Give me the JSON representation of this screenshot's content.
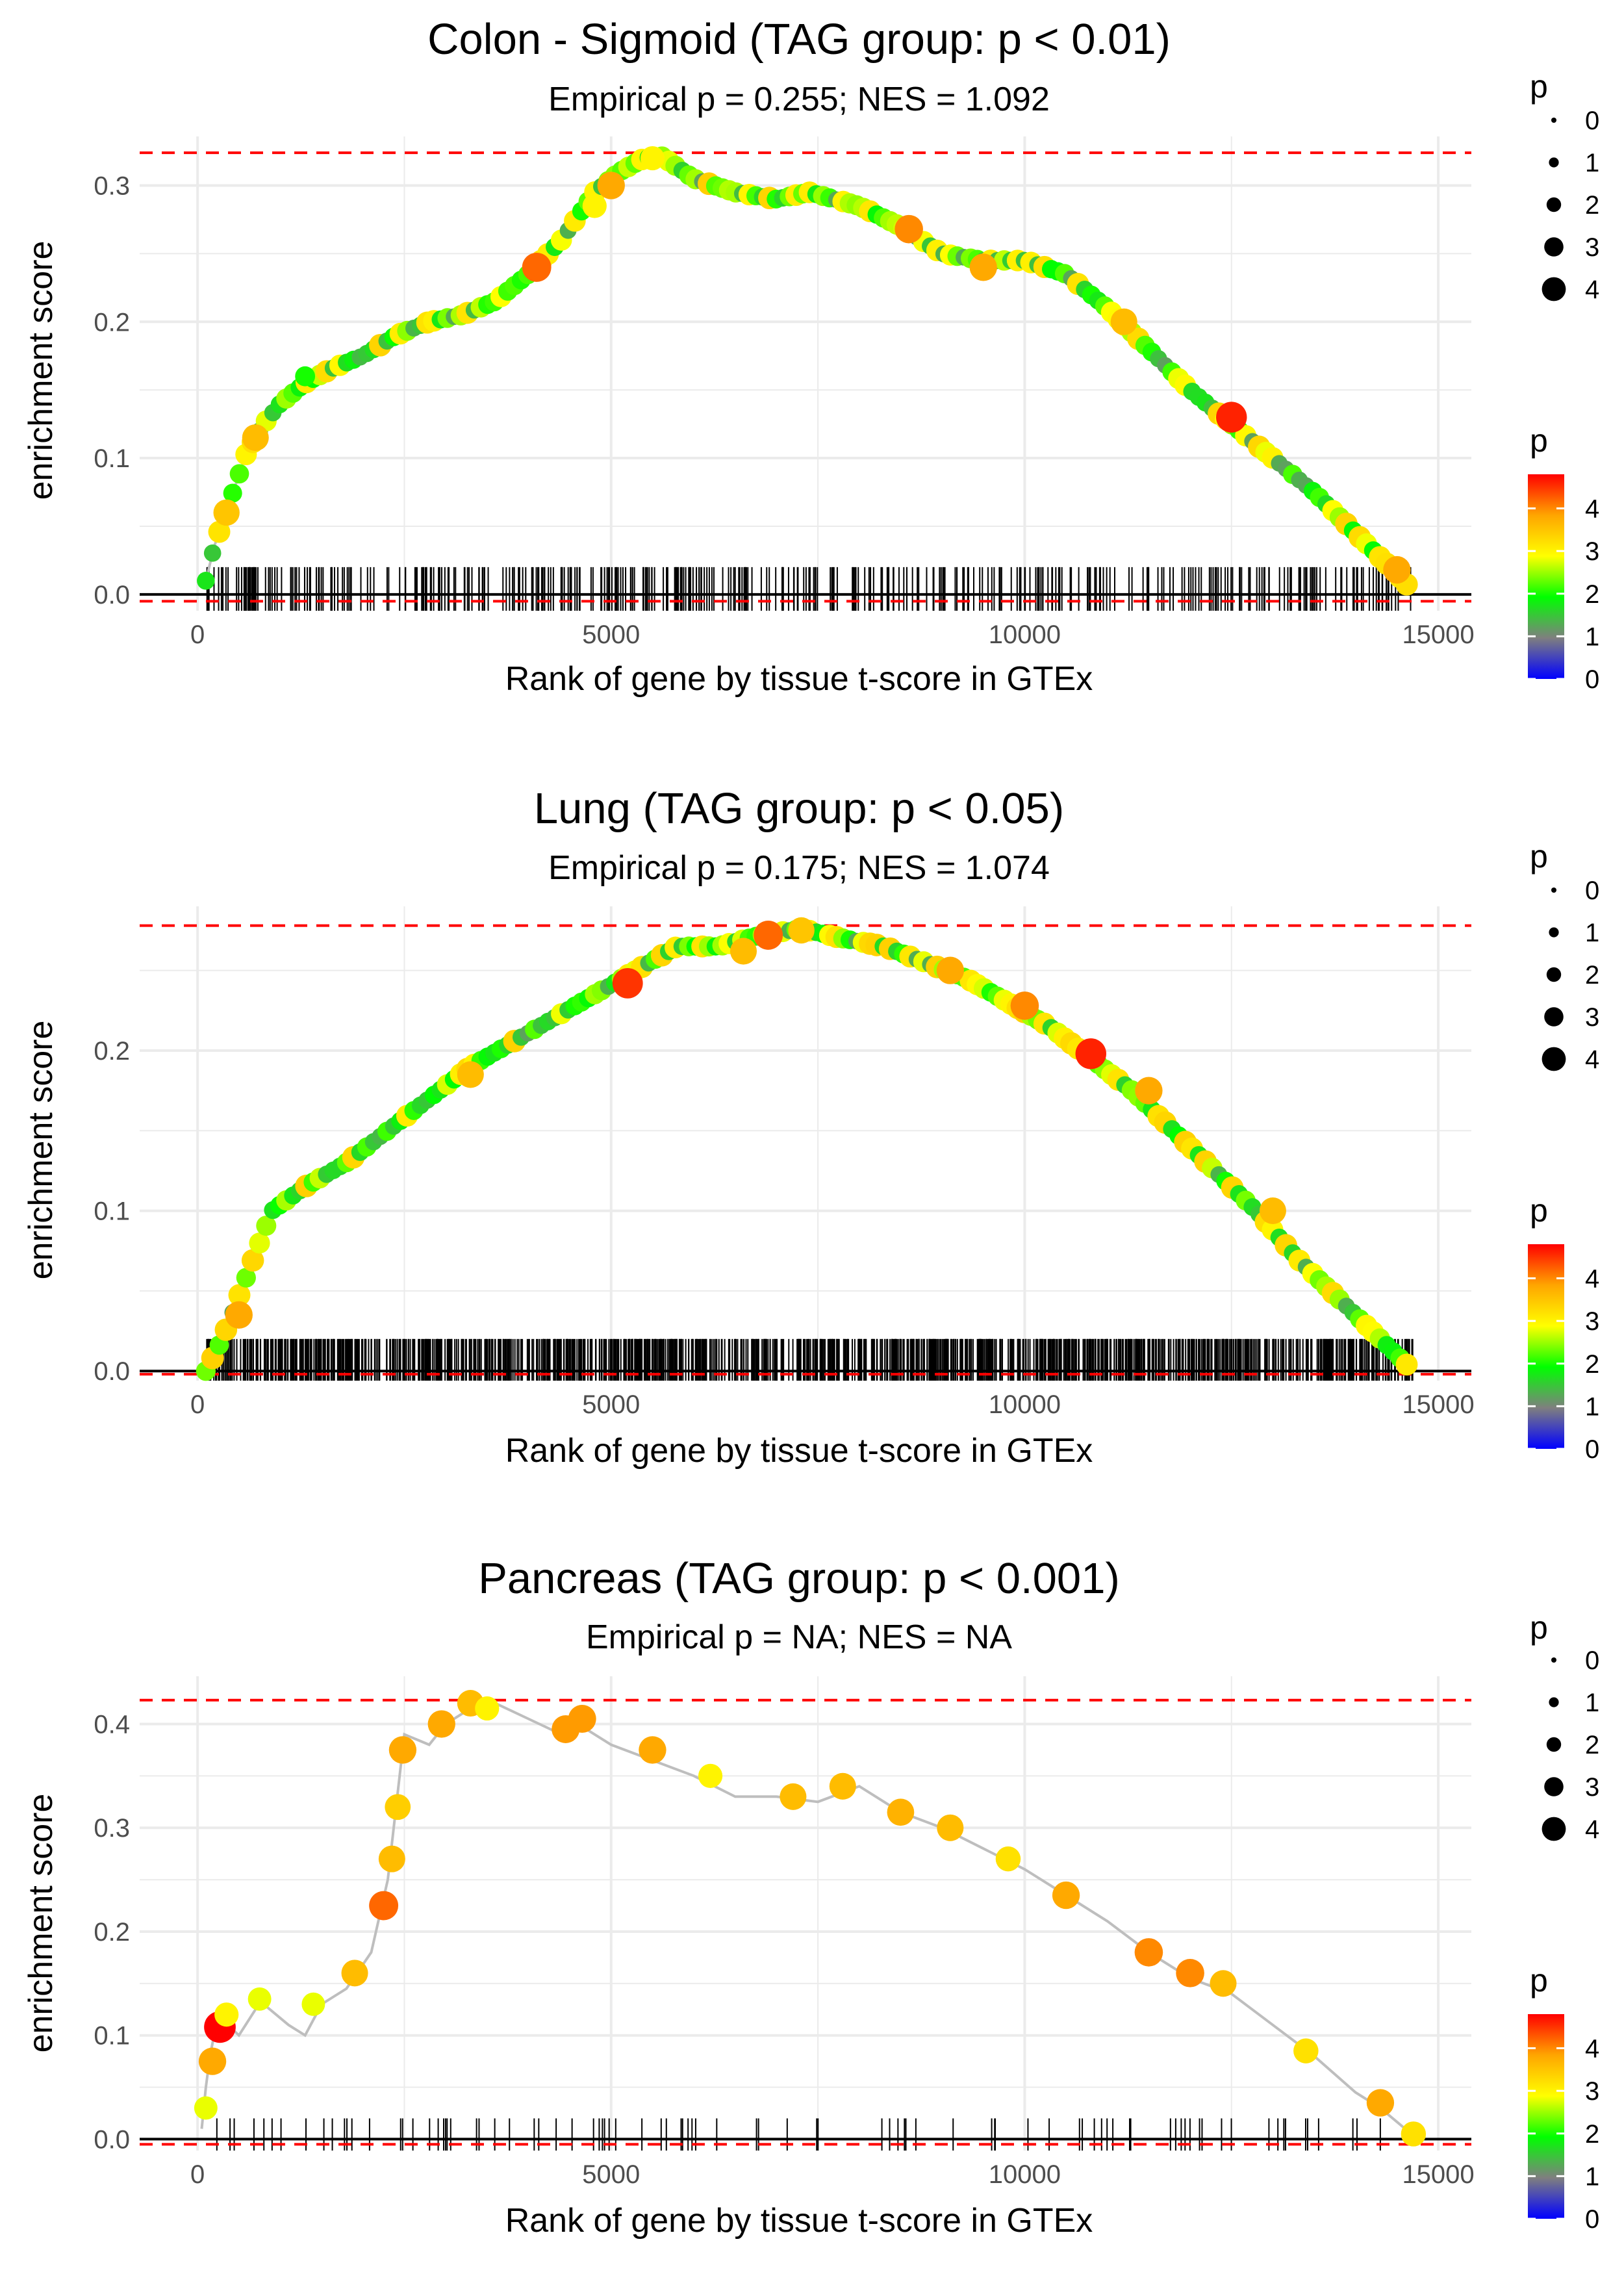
{
  "figure": {
    "xlabel": "Rank of gene by tissue t-score in GTEx",
    "ylabel": "enrichment score",
    "legend": {
      "size_title": "p",
      "size_levels": [
        "0",
        "1",
        "2",
        "3",
        "4"
      ],
      "color_title": "p",
      "color_levels": [
        "4",
        "3",
        "2",
        "1",
        "0"
      ],
      "color_stops": [
        "#0000ff",
        "#7f7f7f",
        "#00ff00",
        "#ffff00",
        "#ffa500",
        "#ff0000"
      ]
    },
    "colors": {
      "curve": "#bebebe",
      "dashed": "#ff0000",
      "baseline": "#000000",
      "grid": "#ebebeb"
    }
  },
  "chart_data": [
    {
      "type": "line",
      "title": "Colon - Sigmoid (TAG group: p < 0.01)",
      "subtitle": "Empirical p = 0.255; NES = 1.092",
      "xlabel": "Rank of gene by tissue t-score in GTEx",
      "ylabel": "enrichment score",
      "xlim": [
        -700,
        15400
      ],
      "ylim": [
        -0.012,
        0.336
      ],
      "x_ticks": [
        0,
        5000,
        10000,
        15000
      ],
      "x_tick_labels": [
        "0",
        "5000",
        "10000",
        "15000"
      ],
      "y_ticks": [
        0.0,
        0.1,
        0.2,
        0.3
      ],
      "y_tick_labels": [
        "0.0",
        "0.1",
        "0.2",
        "0.3"
      ],
      "max_es": 0.324,
      "min_es": -0.005,
      "curve_x": [
        100,
        200,
        400,
        600,
        800,
        1000,
        1300,
        1600,
        2000,
        2400,
        2800,
        3200,
        3600,
        4000,
        4400,
        4800,
        5100,
        5400,
        5600,
        6000,
        6500,
        7000,
        7400,
        8000,
        8500,
        9000,
        9500,
        10000,
        10500,
        11000,
        11500,
        12000,
        12500,
        13000,
        13500,
        14000,
        14500,
        14700
      ],
      "curve_y": [
        0.01,
        0.035,
        0.07,
        0.105,
        0.125,
        0.14,
        0.155,
        0.165,
        0.175,
        0.19,
        0.2,
        0.205,
        0.215,
        0.235,
        0.26,
        0.295,
        0.31,
        0.32,
        0.322,
        0.305,
        0.295,
        0.29,
        0.295,
        0.285,
        0.27,
        0.25,
        0.245,
        0.245,
        0.235,
        0.21,
        0.18,
        0.15,
        0.125,
        0.1,
        0.075,
        0.045,
        0.015,
        0.002
      ],
      "hit_count": 420,
      "hits": [
        {
          "x": 350,
          "es": 0.06,
          "p": 3.5
        },
        {
          "x": 700,
          "es": 0.115,
          "p": 3.6
        },
        {
          "x": 1300,
          "es": 0.16,
          "p": 2.0
        },
        {
          "x": 4100,
          "es": 0.24,
          "p": 4.2
        },
        {
          "x": 4800,
          "es": 0.285,
          "p": 3.0
        },
        {
          "x": 5000,
          "es": 0.3,
          "p": 3.8
        },
        {
          "x": 5500,
          "es": 0.32,
          "p": 3.0
        },
        {
          "x": 8600,
          "es": 0.268,
          "p": 4.0
        },
        {
          "x": 9500,
          "es": 0.24,
          "p": 3.8
        },
        {
          "x": 11200,
          "es": 0.2,
          "p": 3.6
        },
        {
          "x": 12500,
          "es": 0.13,
          "p": 4.6
        },
        {
          "x": 14500,
          "es": 0.018,
          "p": 3.8
        }
      ]
    },
    {
      "type": "line",
      "title": "Lung (TAG group: p < 0.05)",
      "subtitle": "Empirical p = 0.175; NES = 1.074",
      "xlabel": "Rank of gene by tissue t-score in GTEx",
      "ylabel": "enrichment score",
      "xlim": [
        -700,
        15400
      ],
      "ylim": [
        -0.006,
        0.29
      ],
      "x_ticks": [
        0,
        5000,
        10000,
        15000
      ],
      "x_tick_labels": [
        "0",
        "5000",
        "10000",
        "15000"
      ],
      "y_ticks": [
        0.0,
        0.1,
        0.2
      ],
      "y_tick_labels": [
        "0.0",
        "0.1",
        "0.2"
      ],
      "max_es": 0.278,
      "min_es": -0.002,
      "curve_x": [
        100,
        300,
        600,
        900,
        1300,
        1800,
        2300,
        2800,
        3300,
        3800,
        4300,
        4800,
        5300,
        5800,
        6300,
        6800,
        7300,
        7800,
        8300,
        8800,
        9300,
        9800,
        10300,
        10800,
        11300,
        11800,
        12300,
        12800,
        13300,
        13800,
        14300,
        14700
      ],
      "curve_y": [
        0.0,
        0.02,
        0.06,
        0.1,
        0.115,
        0.13,
        0.15,
        0.17,
        0.19,
        0.205,
        0.22,
        0.235,
        0.25,
        0.265,
        0.265,
        0.272,
        0.276,
        0.27,
        0.265,
        0.255,
        0.245,
        0.23,
        0.215,
        0.195,
        0.175,
        0.15,
        0.125,
        0.1,
        0.07,
        0.045,
        0.02,
        0.0
      ],
      "hit_count": 1200,
      "hits": [
        {
          "x": 500,
          "es": 0.035,
          "p": 3.8
        },
        {
          "x": 3300,
          "es": 0.185,
          "p": 3.6
        },
        {
          "x": 5200,
          "es": 0.242,
          "p": 4.5
        },
        {
          "x": 6600,
          "es": 0.262,
          "p": 3.6
        },
        {
          "x": 6900,
          "es": 0.272,
          "p": 4.2
        },
        {
          "x": 7300,
          "es": 0.275,
          "p": 3.5
        },
        {
          "x": 9100,
          "es": 0.25,
          "p": 3.8
        },
        {
          "x": 10000,
          "es": 0.228,
          "p": 4.0
        },
        {
          "x": 10800,
          "es": 0.198,
          "p": 4.6
        },
        {
          "x": 11500,
          "es": 0.175,
          "p": 3.8
        },
        {
          "x": 13000,
          "es": 0.1,
          "p": 3.6
        }
      ]
    },
    {
      "type": "line",
      "title": "Pancreas (TAG group: p < 0.001)",
      "subtitle": "Empirical p = NA; NES = NA",
      "xlabel": "Rank of gene by tissue t-score in GTEx",
      "ylabel": "enrichment score",
      "xlim": [
        -700,
        15400
      ],
      "ylim": [
        -0.011,
        0.446
      ],
      "x_ticks": [
        0,
        5000,
        10000,
        15000
      ],
      "x_tick_labels": [
        "0",
        "5000",
        "10000",
        "15000"
      ],
      "y_ticks": [
        0.0,
        0.1,
        0.2,
        0.3,
        0.4
      ],
      "y_tick_labels": [
        "0.0",
        "0.1",
        "0.2",
        "0.3",
        "0.4"
      ],
      "max_es": 0.423,
      "min_es": -0.005,
      "curve_x": [
        50,
        100,
        150,
        200,
        300,
        500,
        700,
        800,
        1100,
        1300,
        1500,
        1800,
        2100,
        2300,
        2400,
        2500,
        2800,
        3000,
        3300,
        3600,
        4000,
        4400,
        4600,
        5000,
        5500,
        6000,
        6500,
        7000,
        7500,
        8000,
        8500,
        9000,
        9500,
        10000,
        10500,
        11000,
        11500,
        12000,
        12500,
        13000,
        13500,
        14000,
        14300,
        14600,
        14700
      ],
      "curve_y": [
        0.01,
        0.05,
        0.08,
        0.1,
        0.115,
        0.1,
        0.125,
        0.13,
        0.11,
        0.1,
        0.13,
        0.145,
        0.18,
        0.25,
        0.32,
        0.39,
        0.38,
        0.4,
        0.415,
        0.42,
        0.405,
        0.39,
        0.4,
        0.38,
        0.365,
        0.35,
        0.33,
        0.33,
        0.325,
        0.34,
        0.315,
        0.3,
        0.28,
        0.26,
        0.235,
        0.21,
        0.18,
        0.155,
        0.14,
        0.11,
        0.08,
        0.045,
        0.03,
        0.01,
        0.003
      ],
      "hit_count": 90,
      "hits": [
        {
          "x": 100,
          "es": 0.03,
          "p": 2.8
        },
        {
          "x": 180,
          "es": 0.075,
          "p": 3.8
        },
        {
          "x": 270,
          "es": 0.108,
          "p": 4.8
        },
        {
          "x": 350,
          "es": 0.12,
          "p": 3.0
        },
        {
          "x": 750,
          "es": 0.135,
          "p": 2.8
        },
        {
          "x": 1400,
          "es": 0.13,
          "p": 2.8
        },
        {
          "x": 1900,
          "es": 0.16,
          "p": 3.6
        },
        {
          "x": 2250,
          "es": 0.225,
          "p": 4.2
        },
        {
          "x": 2350,
          "es": 0.27,
          "p": 3.6
        },
        {
          "x": 2420,
          "es": 0.32,
          "p": 3.4
        },
        {
          "x": 2480,
          "es": 0.375,
          "p": 3.8
        },
        {
          "x": 2950,
          "es": 0.4,
          "p": 3.8
        },
        {
          "x": 3300,
          "es": 0.42,
          "p": 3.6
        },
        {
          "x": 3500,
          "es": 0.415,
          "p": 3.0
        },
        {
          "x": 4450,
          "es": 0.395,
          "p": 3.9
        },
        {
          "x": 4650,
          "es": 0.405,
          "p": 3.9
        },
        {
          "x": 5500,
          "es": 0.375,
          "p": 3.8
        },
        {
          "x": 6200,
          "es": 0.35,
          "p": 3.0
        },
        {
          "x": 7200,
          "es": 0.33,
          "p": 3.6
        },
        {
          "x": 7800,
          "es": 0.34,
          "p": 3.6
        },
        {
          "x": 8500,
          "es": 0.315,
          "p": 3.7
        },
        {
          "x": 9100,
          "es": 0.3,
          "p": 3.6
        },
        {
          "x": 9800,
          "es": 0.27,
          "p": 3.2
        },
        {
          "x": 10500,
          "es": 0.235,
          "p": 3.8
        },
        {
          "x": 11500,
          "es": 0.18,
          "p": 4.0
        },
        {
          "x": 12000,
          "es": 0.16,
          "p": 4.0
        },
        {
          "x": 12400,
          "es": 0.15,
          "p": 3.6
        },
        {
          "x": 13400,
          "es": 0.085,
          "p": 3.2
        },
        {
          "x": 14300,
          "es": 0.035,
          "p": 3.8
        },
        {
          "x": 14700,
          "es": 0.005,
          "p": 3.2
        }
      ]
    }
  ]
}
